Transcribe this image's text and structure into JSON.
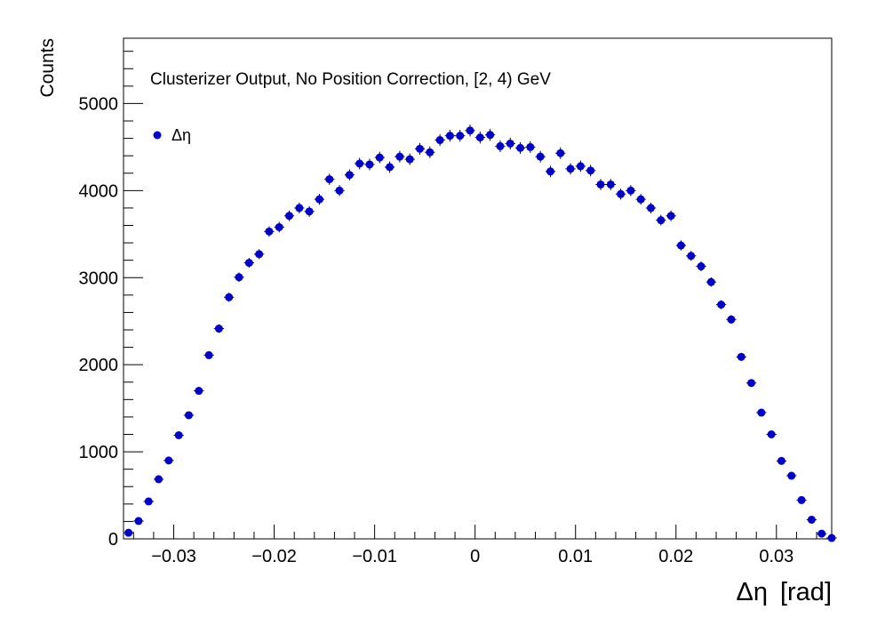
{
  "chart_data": {
    "type": "scatter",
    "title": "",
    "annotation": "Clusterizer Output, No Position Correction, [2, 4) GeV",
    "xlabel_symbol": "Δη",
    "xlabel_unit": "[rad]",
    "ylabel": "Counts",
    "xlim": [
      -0.035,
      0.0355
    ],
    "ylim": [
      0,
      5750
    ],
    "x_ticks": [
      -0.03,
      -0.02,
      -0.01,
      0,
      0.01,
      0.02,
      0.03
    ],
    "x_tick_labels": [
      "−0.03",
      "−0.02",
      "−0.01",
      "0",
      "0.01",
      "0.02",
      "0.03"
    ],
    "y_ticks": [
      0,
      1000,
      2000,
      3000,
      4000,
      5000
    ],
    "y_tick_labels": [
      "0",
      "1000",
      "2000",
      "3000",
      "4000",
      "5000"
    ],
    "grid": false,
    "legend_position": "top-left",
    "series": [
      {
        "name": "Δη",
        "color": "#0000cc",
        "x": [
          -0.0345,
          -0.0335,
          -0.0325,
          -0.0315,
          -0.0305,
          -0.0295,
          -0.0285,
          -0.0275,
          -0.0265,
          -0.0255,
          -0.0245,
          -0.0235,
          -0.0225,
          -0.0215,
          -0.0205,
          -0.0195,
          -0.0185,
          -0.0175,
          -0.0165,
          -0.0155,
          -0.0145,
          -0.0135,
          -0.0125,
          -0.0115,
          -0.0105,
          -0.0095,
          -0.0085,
          -0.0075,
          -0.0065,
          -0.0055,
          -0.0045,
          -0.0035,
          -0.0025,
          -0.0015,
          -0.0005,
          0.0005,
          0.0015,
          0.0025,
          0.0035,
          0.0045,
          0.0055,
          0.0065,
          0.0075,
          0.0085,
          0.0095,
          0.0105,
          0.0115,
          0.0125,
          0.0135,
          0.0145,
          0.0155,
          0.0165,
          0.0175,
          0.0185,
          0.0195,
          0.0205,
          0.0215,
          0.0225,
          0.0235,
          0.0245,
          0.0255,
          0.0265,
          0.0275,
          0.0285,
          0.0295,
          0.0305,
          0.0315,
          0.0325,
          0.0335,
          0.0345,
          0.0355
        ],
        "y": [
          70,
          205,
          430,
          685,
          900,
          1190,
          1420,
          1700,
          2110,
          2415,
          2775,
          3005,
          3170,
          3270,
          3530,
          3580,
          3710,
          3800,
          3760,
          3900,
          4130,
          4000,
          4180,
          4310,
          4300,
          4380,
          4270,
          4390,
          4360,
          4480,
          4440,
          4580,
          4630,
          4630,
          4690,
          4610,
          4640,
          4510,
          4540,
          4490,
          4500,
          4390,
          4220,
          4430,
          4250,
          4280,
          4230,
          4070,
          4070,
          3960,
          4000,
          3900,
          3800,
          3660,
          3710,
          3370,
          3250,
          3130,
          2950,
          2690,
          2520,
          2090,
          1790,
          1450,
          1200,
          895,
          725,
          445,
          220,
          60,
          10
        ]
      }
    ]
  }
}
